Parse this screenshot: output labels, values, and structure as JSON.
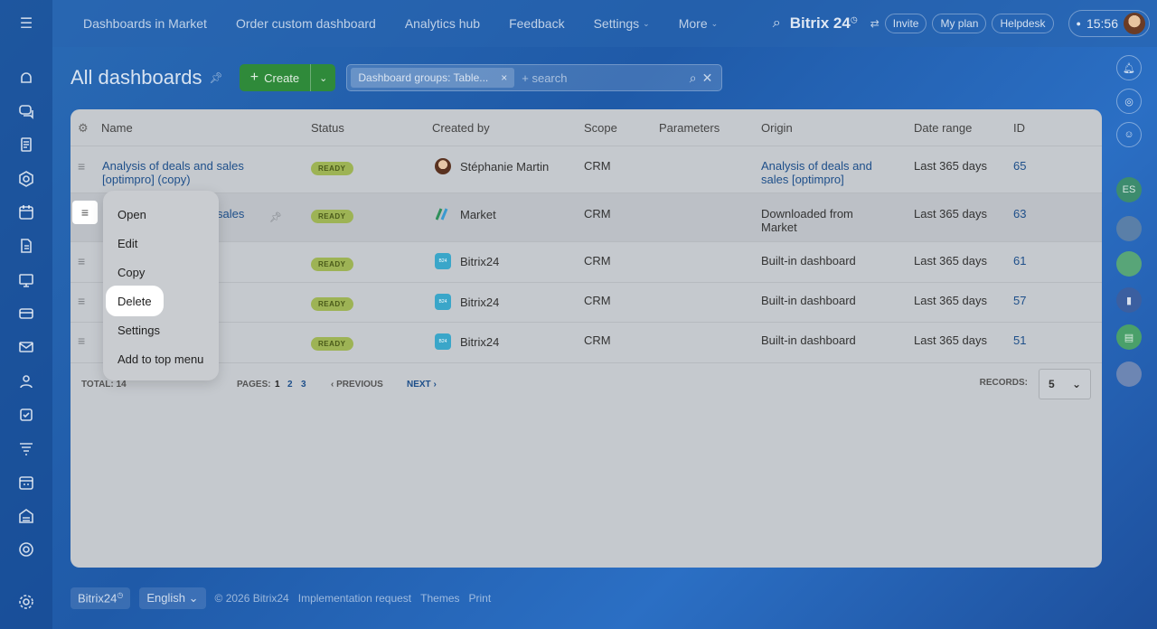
{
  "topbar": {
    "nav": [
      "Dashboards in Market",
      "Order custom dashboard",
      "Analytics hub",
      "Feedback",
      "Settings",
      "More"
    ],
    "brand": "Bitrix 24",
    "invite": "Invite",
    "my_plan": "My plan",
    "helpdesk": "Helpdesk",
    "time": "15:56"
  },
  "page": {
    "title": "All dashboards",
    "create_label": "Create",
    "filter_tag": "Dashboard groups: Table...",
    "search_placeholder": "+ search"
  },
  "table": {
    "headers": [
      "Name",
      "Status",
      "Created by",
      "Scope",
      "Parameters",
      "Origin",
      "Date range",
      "ID"
    ],
    "rows": [
      {
        "name": "Analysis of deals and sales [optimpro] (copy)",
        "status": "READY",
        "created_by": "Stéphanie Martin",
        "scope": "CRM",
        "origin": "Analysis of deals and sales [optimpro]",
        "date_range": "Last 365 days",
        "id": "65"
      },
      {
        "name": "sales",
        "status": "READY",
        "created_by": "Market",
        "scope": "CRM",
        "origin": "Downloaded from Market",
        "date_range": "Last 365 days",
        "id": "63"
      },
      {
        "name": "",
        "status": "READY",
        "created_by": "Bitrix24",
        "scope": "CRM",
        "origin": "Built-in dashboard",
        "date_range": "Last 365 days",
        "id": "61"
      },
      {
        "name": "",
        "status": "READY",
        "created_by": "Bitrix24",
        "scope": "CRM",
        "origin": "Built-in dashboard",
        "date_range": "Last 365 days",
        "id": "57"
      },
      {
        "name": "",
        "status": "READY",
        "created_by": "Bitrix24",
        "scope": "CRM",
        "origin": "Built-in dashboard",
        "date_range": "Last 365 days",
        "id": "51"
      }
    ],
    "total_label": "TOTAL: 14",
    "pages_label": "PAGES:",
    "pages": [
      "1",
      "2",
      "3"
    ],
    "previous": "PREVIOUS",
    "next": "NEXT",
    "records_label": "RECORDS:",
    "records_value": "5"
  },
  "context_menu": {
    "items": [
      "Open",
      "Edit",
      "Copy",
      "Delete",
      "Settings",
      "Add to top menu"
    ]
  },
  "right_rail": {
    "badge": "ES"
  },
  "footer": {
    "brand": "Bitrix24",
    "language": "English",
    "copyright": "© 2026 Bitrix24",
    "implementation": "Implementation request",
    "themes": "Themes",
    "print": "Print"
  }
}
